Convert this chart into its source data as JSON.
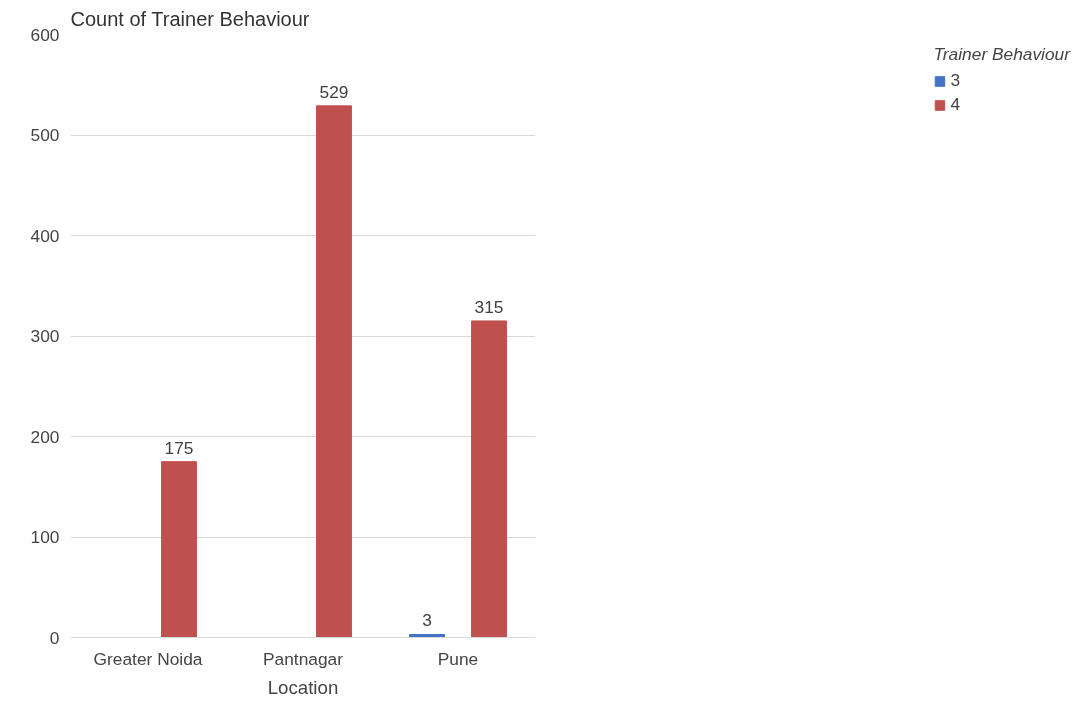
{
  "chart_data": {
    "type": "bar",
    "title": "Count of Trainer Behaviour",
    "xlabel": "Location",
    "legend_title": "Trainer Behaviour",
    "categories": [
      "Greater Noida",
      "Pantnagar",
      "Pune"
    ],
    "series": [
      {
        "name": "3",
        "color": "#4472c4",
        "values": [
          null,
          null,
          3
        ]
      },
      {
        "name": "4",
        "color": "#c0504d",
        "values": [
          175,
          529,
          315
        ]
      }
    ],
    "ylim": [
      0,
      600
    ],
    "yticks": [
      0,
      100,
      200,
      300,
      400,
      500,
      600
    ],
    "grid": "y",
    "legend": "right",
    "data_labels": true
  }
}
